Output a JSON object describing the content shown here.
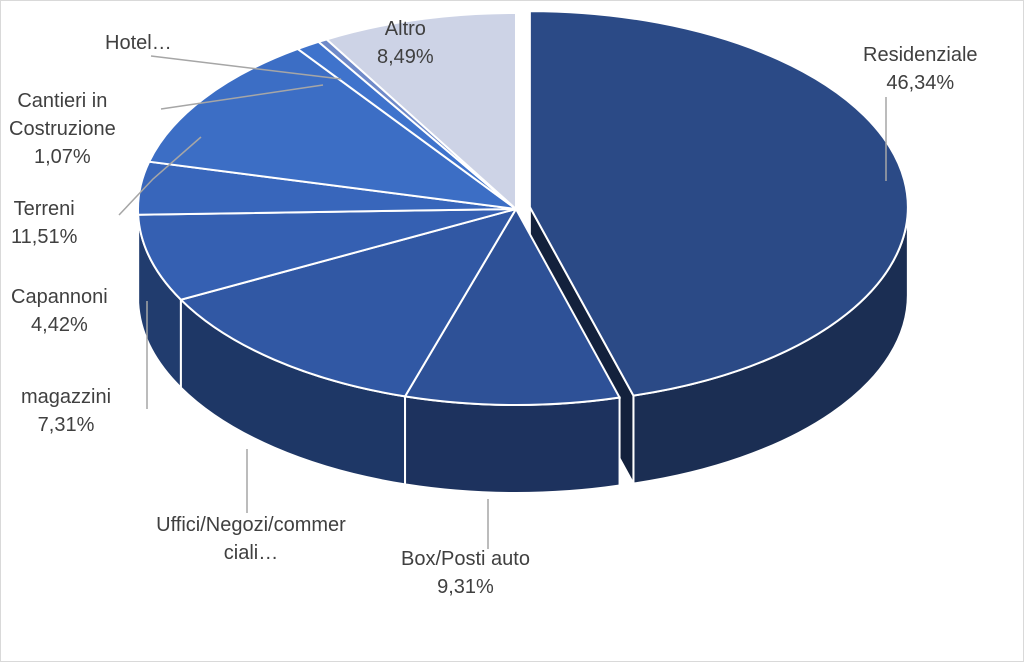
{
  "chart_data": {
    "type": "pie",
    "style": "3d-exploded",
    "title": "",
    "slices": [
      {
        "category": "Residenziale",
        "value": 46.34,
        "label": "46,34%",
        "color": "#2b4a86"
      },
      {
        "category": "Box/Posti auto",
        "value": 9.31,
        "label": "9,31%",
        "color": "#2e5197"
      },
      {
        "category": "Uffici/Negozi/commer ciali…",
        "value": 12.81,
        "label": "",
        "color": "#3158a4"
      },
      {
        "category": "magazzini",
        "value": 7.31,
        "label": "7,31%",
        "color": "#3560b2"
      },
      {
        "category": "Capannoni",
        "value": 4.42,
        "label": "4,42%",
        "color": "#3866bb"
      },
      {
        "category": "Terreni",
        "value": 11.51,
        "label": "11,51%",
        "color": "#3c6ec5"
      },
      {
        "category": "Cantieri in Costruzione",
        "value": 1.07,
        "label": "1,07%",
        "color": "#3f73cc"
      },
      {
        "category": "Hotel…",
        "value": 0.4,
        "label": "",
        "color": "#6f8ac9"
      },
      {
        "category": "Altro",
        "value": 8.49,
        "label": "8,49%",
        "color": "#cdd3e6"
      }
    ]
  }
}
